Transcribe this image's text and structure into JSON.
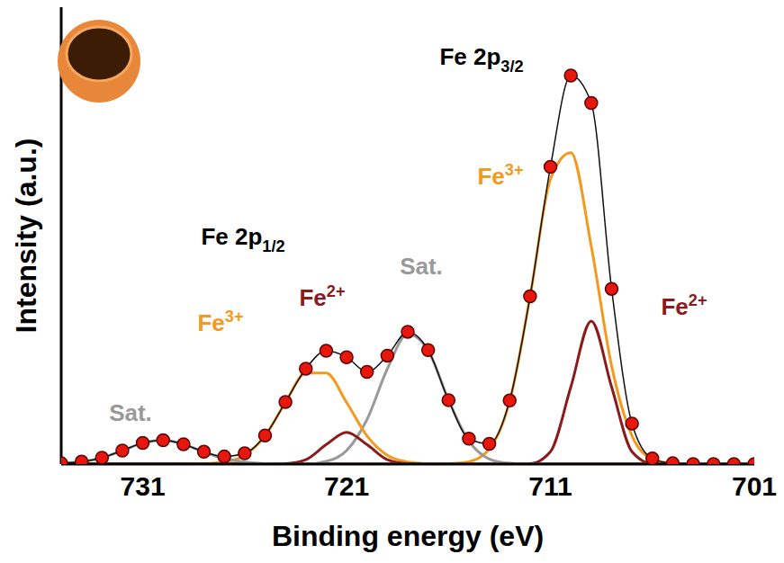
{
  "chart_data": {
    "type": "line",
    "xlabel": "Binding energy (eV)",
    "ylabel": "Intensity (a.u.)",
    "annotations": [
      "Fe 2p3/2",
      "Fe 2p1/2"
    ],
    "xlim": [
      735,
      701
    ],
    "xticks": [
      731,
      721,
      711,
      701
    ],
    "ylim": [
      0,
      1.15
    ],
    "tick_labels": "x",
    "grid": false,
    "marker": "circle",
    "color": "#e8170e",
    "x": [
      735,
      734,
      733,
      732,
      731,
      730,
      729,
      728,
      727,
      726,
      725,
      724,
      723,
      722,
      721,
      720,
      719,
      718,
      717,
      716,
      715,
      714,
      713,
      712,
      711,
      710,
      709,
      708,
      707,
      706,
      705,
      704,
      703,
      702,
      701
    ],
    "values": [
      0.002,
      0.006,
      0.016,
      0.034,
      0.053,
      0.06,
      0.05,
      0.031,
      0.019,
      0.027,
      0.072,
      0.156,
      0.24,
      0.285,
      0.269,
      0.232,
      0.273,
      0.333,
      0.287,
      0.161,
      0.064,
      0.051,
      0.16,
      0.422,
      0.748,
      0.978,
      0.909,
      0.441,
      0.102,
      0.014,
      0.002,
      0,
      0,
      0,
      0
    ],
    "series": [
      {
        "name": "Fe3+",
        "color": "#f39a1e",
        "line_style": "solid",
        "values": [
          0,
          0,
          0,
          0,
          0,
          0,
          0,
          0,
          0,
          0,
          0,
          0,
          0,
          0,
          0,
          0,
          0,
          0,
          0,
          0.001,
          0.006,
          0.038,
          0.158,
          0.421,
          0.717,
          0.784,
          0.549,
          0.247,
          0.071,
          0.013,
          0.002,
          0,
          0,
          0,
          0
        ]
      },
      {
        "name": "Fe2+",
        "color": "#8b1a1a",
        "line_style": "solid",
        "values": [
          0,
          0,
          0,
          0,
          0,
          0,
          0,
          0,
          0,
          0,
          0,
          0,
          0,
          0,
          0,
          0,
          0,
          0,
          0,
          0,
          0,
          0,
          0,
          0.001,
          0.031,
          0.194,
          0.36,
          0.194,
          0.031,
          0.001,
          0,
          0,
          0,
          0,
          0
        ]
      },
      {
        "name": "Sat.",
        "color": "#999999",
        "line_style": "solid",
        "values": [
          0,
          0,
          0,
          0,
          0,
          0,
          0,
          0,
          0,
          0,
          0,
          0,
          0,
          0.007,
          0.034,
          0.112,
          0.24,
          0.327,
          0.286,
          0.161,
          0.058,
          0.013,
          0.002,
          0,
          0,
          0,
          0,
          0,
          0,
          0,
          0,
          0,
          0,
          0,
          0
        ]
      },
      {
        "name": "Fe3+",
        "color": "#f39a1e",
        "line_style": "solid",
        "values": [
          0,
          0,
          0,
          0,
          0,
          0,
          0,
          0.001,
          0.005,
          0.022,
          0.071,
          0.155,
          0.229,
          0.229,
          0.155,
          0.071,
          0.022,
          0.005,
          0.001,
          0,
          0,
          0,
          0,
          0,
          0,
          0,
          0,
          0,
          0,
          0,
          0,
          0,
          0,
          0,
          0
        ]
      },
      {
        "name": "Fe2+",
        "color": "#8b1a1a",
        "line_style": "solid",
        "values": [
          0,
          0,
          0,
          0,
          0,
          0,
          0,
          0,
          0,
          0,
          0,
          0.001,
          0.011,
          0.049,
          0.08,
          0.049,
          0.011,
          0.001,
          0,
          0,
          0,
          0,
          0,
          0,
          0,
          0,
          0,
          0,
          0,
          0,
          0,
          0,
          0,
          0,
          0
        ]
      },
      {
        "name": "Sat.",
        "color": "#999999",
        "line_style": "solid",
        "values": [
          0.002,
          0.006,
          0.016,
          0.034,
          0.053,
          0.06,
          0.05,
          0.03,
          0.014,
          0.005,
          0.001,
          0,
          0,
          0,
          0,
          0,
          0,
          0,
          0,
          0,
          0,
          0,
          0,
          0,
          0,
          0,
          0,
          0,
          0,
          0,
          0,
          0,
          0,
          0,
          0
        ]
      }
    ]
  }
}
